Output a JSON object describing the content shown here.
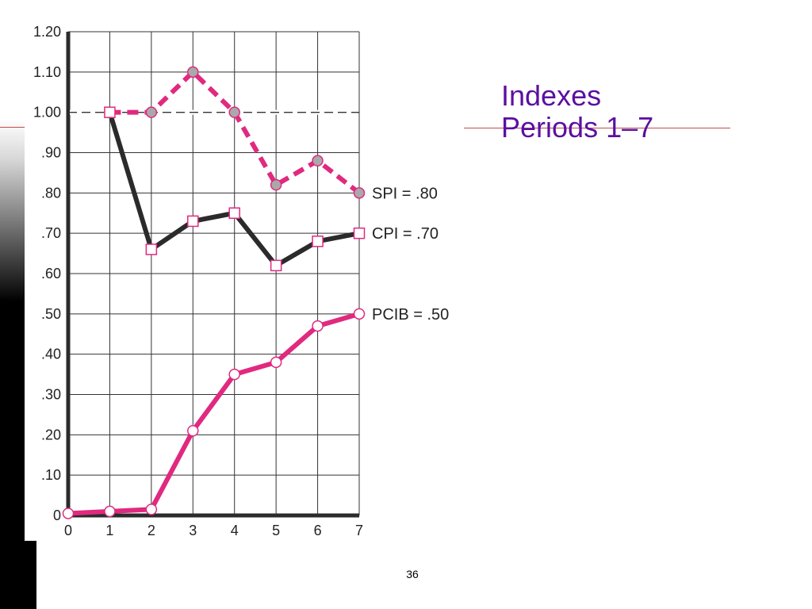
{
  "slide": {
    "title_line1": "Indexes",
    "title_line2": "Periods 1–7",
    "page_number": "36"
  },
  "chart_data": {
    "type": "line",
    "x": [
      0,
      1,
      2,
      3,
      4,
      5,
      6,
      7
    ],
    "xlim": [
      0,
      7
    ],
    "ylim": [
      0,
      1.2
    ],
    "x_tick_labels": [
      "0",
      "1",
      "2",
      "3",
      "4",
      "5",
      "6",
      "7"
    ],
    "y_ticks": [
      0,
      0.1,
      0.2,
      0.3,
      0.4,
      0.5,
      0.6,
      0.7,
      0.8,
      0.9,
      1.0,
      1.1,
      1.2
    ],
    "y_tick_labels": [
      "0",
      ".10",
      ".20",
      ".30",
      ".40",
      ".50",
      ".60",
      ".70",
      ".80",
      ".90",
      "1.00",
      "1.10",
      "1.20"
    ],
    "grid": true,
    "reference_line": {
      "y": 1.0,
      "style": "dashed"
    },
    "series": [
      {
        "label": "SPI = .80",
        "x": [
          1,
          2,
          3,
          4,
          5,
          6,
          7
        ],
        "values": [
          1.0,
          1.0,
          1.1,
          1.0,
          0.82,
          0.88,
          0.8
        ],
        "color": "#e0297f",
        "line": "dashed",
        "marker": "circle-gray"
      },
      {
        "label": "CPI = .70",
        "x": [
          1,
          2,
          3,
          4,
          5,
          6,
          7
        ],
        "values": [
          1.0,
          0.66,
          0.73,
          0.75,
          0.62,
          0.68,
          0.7
        ],
        "color": "#2b2b2b",
        "line": "solid",
        "marker": "square-white"
      },
      {
        "label": "PCIB = .50",
        "x": [
          0,
          1,
          2,
          3,
          4,
          5,
          6,
          7
        ],
        "values": [
          0.005,
          0.01,
          0.015,
          0.21,
          0.35,
          0.38,
          0.47,
          0.5
        ],
        "color": "#e0297f",
        "line": "solid",
        "marker": "circle-white"
      }
    ]
  }
}
